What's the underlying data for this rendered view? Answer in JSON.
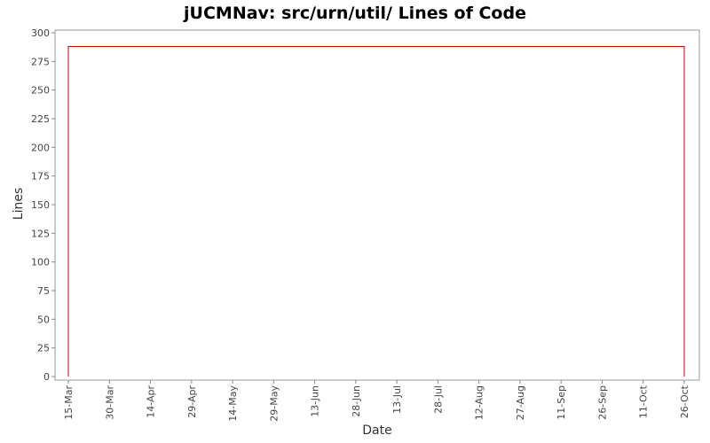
{
  "chart_data": {
    "type": "line",
    "title": "jUCMNav: src/urn/util/ Lines of Code",
    "xlabel": "Date",
    "ylabel": "Lines",
    "ylim": [
      0,
      300
    ],
    "yticks": [
      0,
      25,
      50,
      75,
      100,
      125,
      150,
      175,
      200,
      225,
      250,
      275,
      300
    ],
    "xticks": [
      "15-Mar",
      "30-Mar",
      "14-Apr",
      "29-Apr",
      "14-May",
      "29-May",
      "13-Jun",
      "28-Jun",
      "13-Jul",
      "28-Jul",
      "12-Aug",
      "27-Aug",
      "11-Sep",
      "26-Sep",
      "11-Oct",
      "26-Oct"
    ],
    "grid": false,
    "series": [
      {
        "color": "#cc0000",
        "points": [
          {
            "x": "15-Mar",
            "y": 0
          },
          {
            "x": "15-Mar",
            "y": 288
          },
          {
            "x": "26-Oct",
            "y": 288
          },
          {
            "x": "26-Oct",
            "y": 0
          }
        ]
      }
    ]
  }
}
